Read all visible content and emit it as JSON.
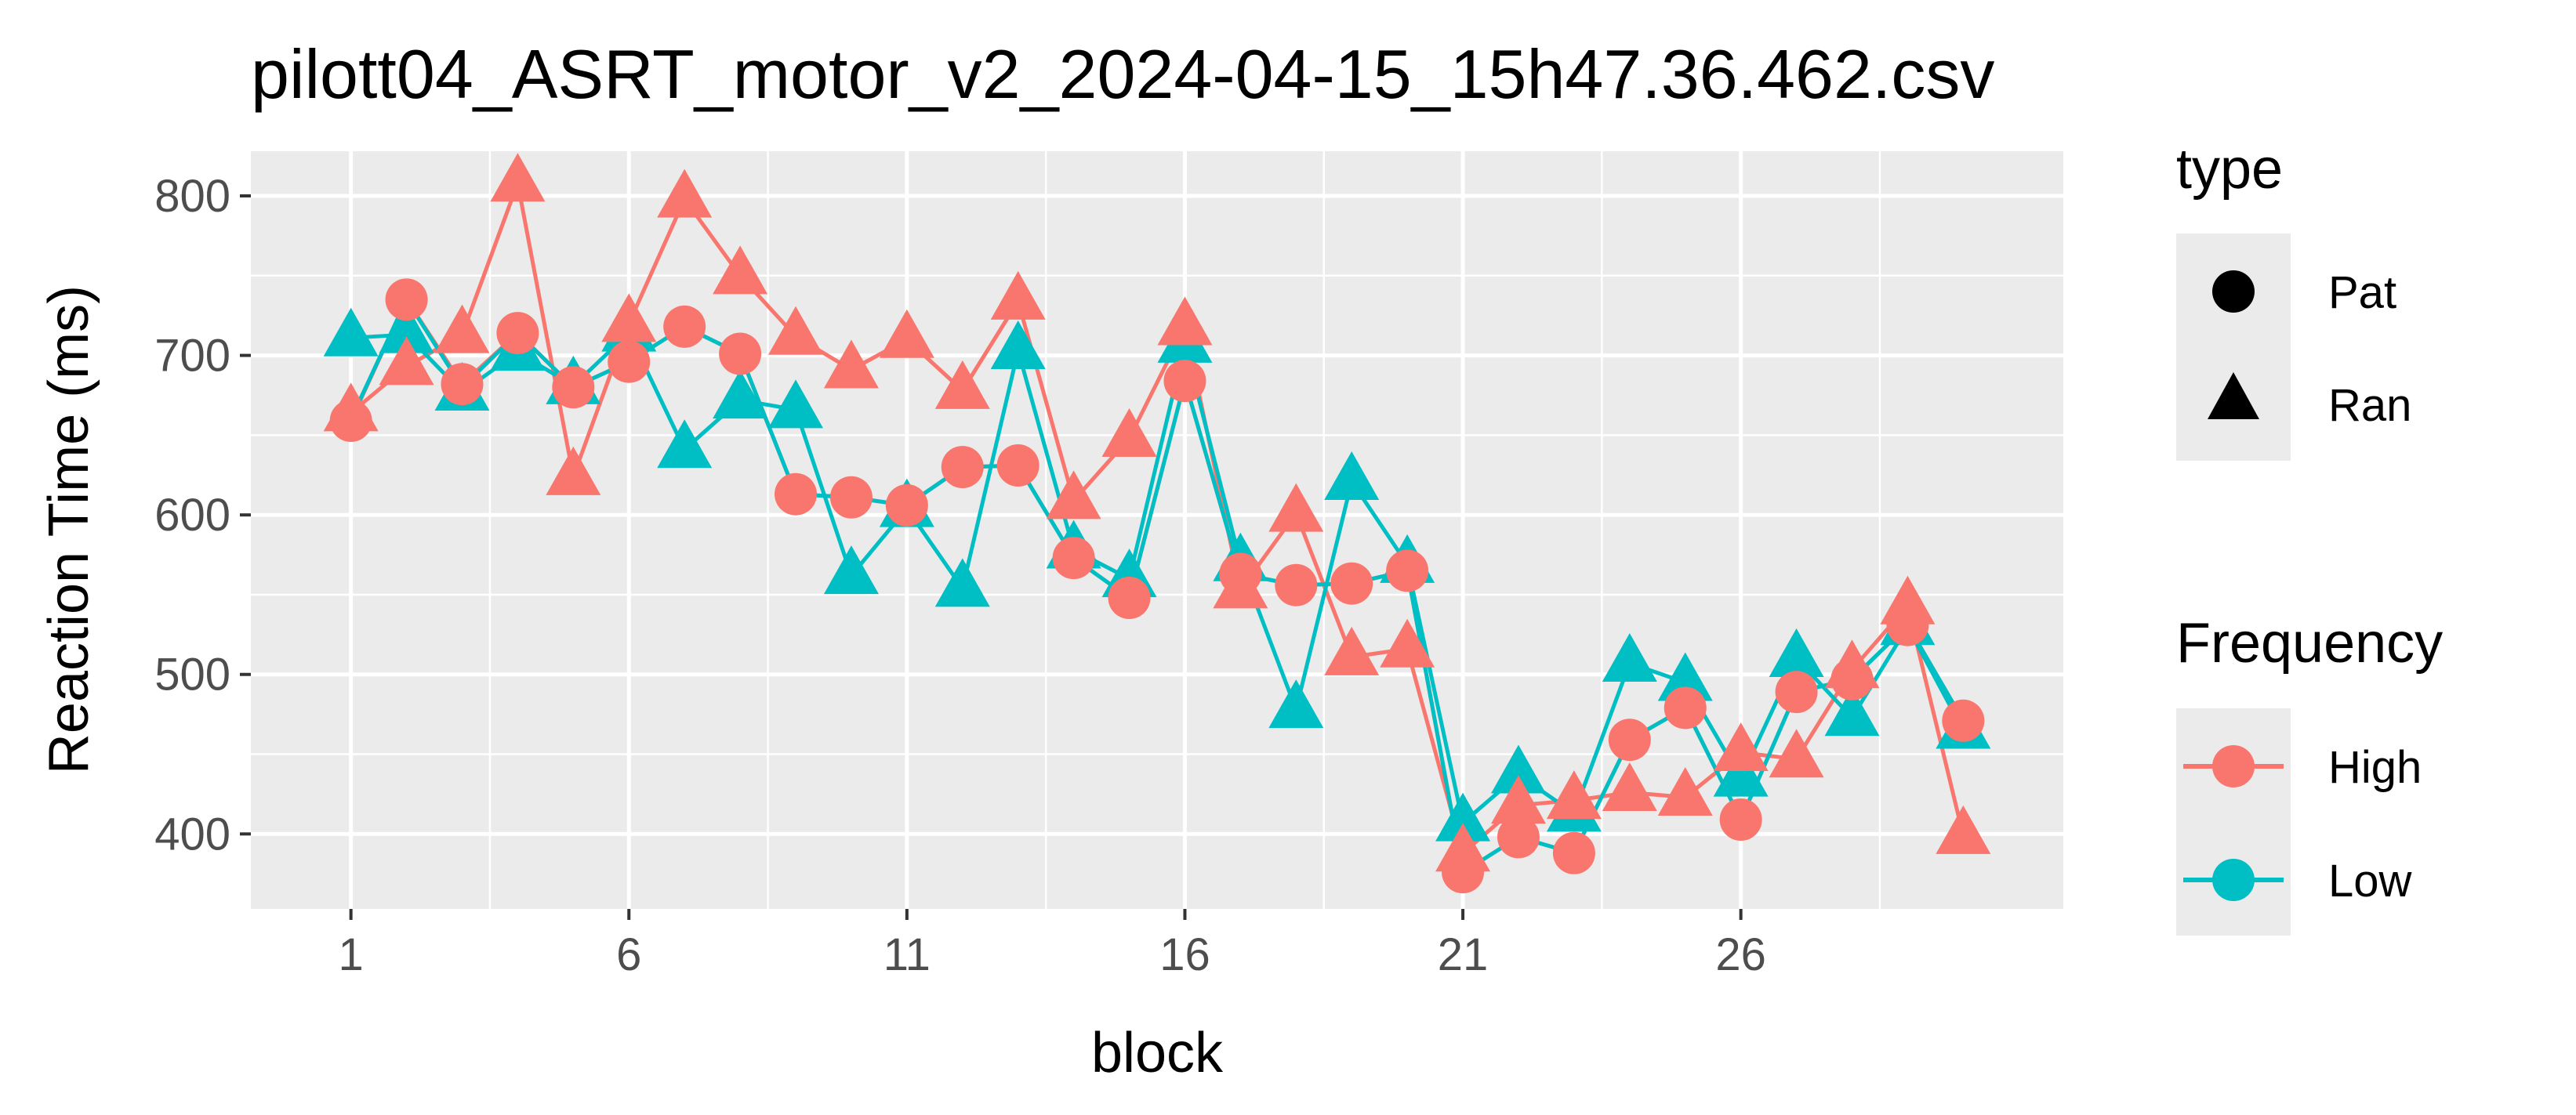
{
  "chart_data": {
    "type": "line",
    "title": "pilott04_ASRT_motor_v2_2024-04-15_15h47.36.462.csv",
    "xlabel": "block",
    "ylabel": "Reaction Time (ms)",
    "xlim": [
      -0.8,
      31.8
    ],
    "ylim": [
      353,
      828
    ],
    "x_ticks": [
      1,
      6,
      11,
      16,
      21,
      26
    ],
    "y_ticks": [
      400,
      500,
      600,
      700,
      800
    ],
    "grid": true,
    "legend_position": "right",
    "colors": {
      "High": "#F8766D",
      "Low": "#00BFC4",
      "panel": "#EBEBEB",
      "grid": "#FFFFFF"
    },
    "legend": {
      "type": {
        "title": "type",
        "items": [
          {
            "label": "Pat",
            "shape": "circle"
          },
          {
            "label": "Ran",
            "shape": "triangle"
          }
        ]
      },
      "frequency": {
        "title": "Frequency",
        "items": [
          {
            "label": "High",
            "color": "#F8766D"
          },
          {
            "label": "Low",
            "color": "#00BFC4"
          }
        ]
      }
    },
    "series": [
      {
        "name": "High",
        "type": "Pat",
        "color": "#F8766D",
        "shape": "circle",
        "x": [
          1,
          2,
          3,
          4,
          5,
          6,
          7,
          8,
          9,
          10,
          11,
          12,
          13,
          14,
          15,
          16,
          17,
          18,
          19,
          20,
          21,
          22,
          23,
          24,
          25,
          26,
          27,
          28,
          29,
          30
        ],
        "y": [
          659,
          735,
          682,
          714,
          680,
          696,
          718,
          701,
          613,
          611,
          606,
          630,
          631,
          573,
          548,
          684,
          563,
          556,
          557,
          565,
          376,
          398,
          388,
          459,
          479,
          409,
          489,
          497,
          531,
          471
        ]
      },
      {
        "name": "High",
        "type": "Ran",
        "color": "#F8766D",
        "shape": "triangle",
        "x": [
          1,
          2,
          3,
          4,
          5,
          6,
          7,
          8,
          9,
          10,
          11,
          12,
          13,
          14,
          15,
          16,
          17,
          18,
          19,
          20,
          21,
          22,
          23,
          24,
          25,
          26,
          27,
          28,
          29,
          30
        ],
        "y": [
          664,
          693,
          713,
          808,
          624,
          720,
          798,
          750,
          712,
          691,
          710,
          678,
          734,
          609,
          648,
          718,
          553,
          601,
          511,
          516,
          388,
          418,
          421,
          426,
          423,
          451,
          447,
          503,
          543,
          399
        ]
      },
      {
        "name": "Low",
        "type": "Pat",
        "color": "#00BFC4",
        "shape": "circle",
        "x": [
          1,
          2,
          3,
          4,
          5,
          6,
          7,
          8,
          9,
          10,
          11,
          12,
          13,
          14,
          15,
          16,
          17,
          18,
          19,
          20,
          21,
          22,
          23,
          24,
          25,
          26,
          27,
          28,
          29,
          30
        ],
        "y": [
          660,
          735,
          680,
          714,
          680,
          696,
          718,
          701,
          613,
          611,
          606,
          630,
          631,
          573,
          548,
          684,
          563,
          556,
          557,
          565,
          376,
          398,
          388,
          459,
          479,
          409,
          489,
          497,
          531,
          471
        ],
        "hidden_markers": true
      },
      {
        "name": "Low",
        "type": "Ran",
        "color": "#00BFC4",
        "shape": "triangle",
        "x": [
          1,
          2,
          3,
          4,
          5,
          6,
          7,
          8,
          9,
          10,
          11,
          12,
          13,
          14,
          15,
          16,
          17,
          18,
          19,
          20,
          21,
          22,
          23,
          24,
          25,
          26,
          27,
          28,
          29,
          30
        ],
        "y": [
          711,
          713,
          677,
          702,
          681,
          714,
          641,
          672,
          666,
          562,
          604,
          554,
          703,
          578,
          560,
          707,
          570,
          478,
          621,
          569,
          407,
          437,
          413,
          507,
          495,
          435,
          510,
          473,
          530,
          465
        ]
      }
    ]
  }
}
